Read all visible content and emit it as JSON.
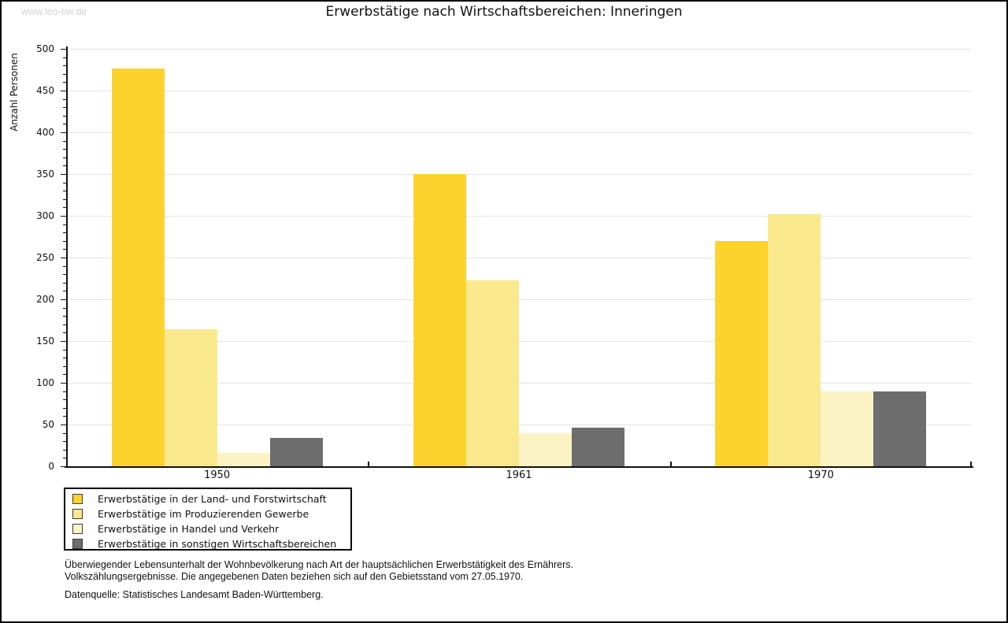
{
  "watermark": "www.leo-bw.de",
  "title": "Erwerbstätige nach Wirtschaftsbereichen: Inneringen",
  "chart_data": {
    "type": "bar",
    "title": "Erwerbstätige nach Wirtschaftsbereichen: Inneringen",
    "ylabel": "Anzahl Personen",
    "xlabel": "",
    "categories": [
      "1950",
      "1961",
      "1970"
    ],
    "series": [
      {
        "name": "Erwerbstätige in der Land- und Forstwirtschaft",
        "color": "#fcd32d",
        "values": [
          476,
          350,
          270
        ]
      },
      {
        "name": "Erwerbstätige im Produzierenden Gewerbe",
        "color": "#fae88d",
        "values": [
          164,
          223,
          302
        ]
      },
      {
        "name": "Erwerbstätige in Handel und Verkehr",
        "color": "#fcf3c5",
        "values": [
          16,
          40,
          90
        ]
      },
      {
        "name": "Erwerbstätige in sonstigen Wirtschaftsbereichen",
        "color": "#6d6d6d",
        "values": [
          34,
          46,
          90
        ]
      }
    ],
    "ylim": [
      0,
      500
    ],
    "ytick_step": 50,
    "ytick_minor_step": 10,
    "grid": "horizontal-major",
    "legend_position": "bottom-left",
    "axis_color": "#111111",
    "grid_color": "#e4e4e4"
  },
  "notes": [
    "Überwiegender Lebensunterhalt der Wohnbevölkerung nach Art der hauptsächlichen Erwerbstätigkeit des Ernährers.",
    "Volkszählungsergebnisse. Die angegebenen Daten beziehen sich auf den Gebietsstand vom 27.05.1970.",
    "Datenquelle: Statistisches Landesamt Baden-Württemberg."
  ]
}
